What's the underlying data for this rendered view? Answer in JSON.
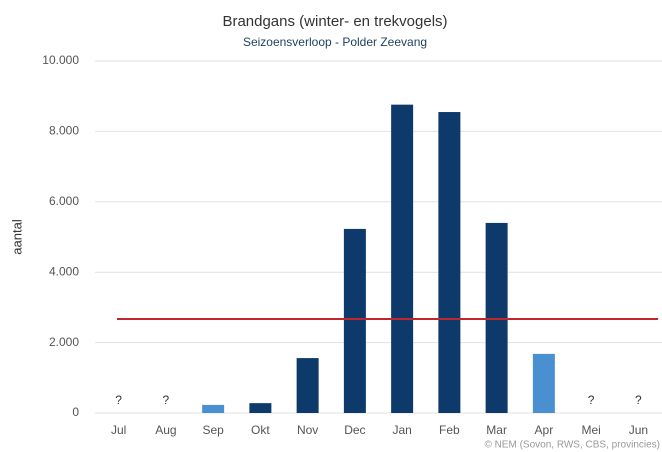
{
  "chart_data": {
    "type": "bar",
    "title": "Brandgans (winter- en trekvogels)",
    "subtitle": "Seizoensverloop - Polder Zeevang",
    "y_label": "aantal",
    "source": "© NEM (Sovon, RWS, CBS, provincies)",
    "categories": [
      "Jul",
      "Aug",
      "Sep",
      "Okt",
      "Nov",
      "Dec",
      "Jan",
      "Feb",
      "Mar",
      "Apr",
      "Mei",
      "Jun"
    ],
    "values": [
      null,
      null,
      230,
      280,
      1560,
      5230,
      8760,
      8550,
      5400,
      1680,
      null,
      null
    ],
    "value_labels": [
      "?",
      "?",
      null,
      null,
      null,
      null,
      null,
      null,
      null,
      null,
      "?",
      "?"
    ],
    "colors": [
      "#4a90d0",
      "#4a90d0",
      "#4a90d0",
      "#0d3a6b",
      "#0d3a6b",
      "#0d3a6b",
      "#0d3a6b",
      "#0d3a6b",
      "#0d3a6b",
      "#4a90d0",
      "#4a90d0",
      "#4a90d0"
    ],
    "reference_line": {
      "value": 2670,
      "color": "#c0272d"
    },
    "ylim": [
      0,
      10000
    ],
    "yticks": [
      0,
      {
        "value": 2000,
        "label": "2.000"
      },
      {
        "value": 4000,
        "label": "4.000"
      },
      {
        "value": 6000,
        "label": "6.000"
      },
      {
        "value": 8000,
        "label": "8.000"
      },
      {
        "value": 10000,
        "label": "10.000"
      }
    ],
    "grid": true
  }
}
